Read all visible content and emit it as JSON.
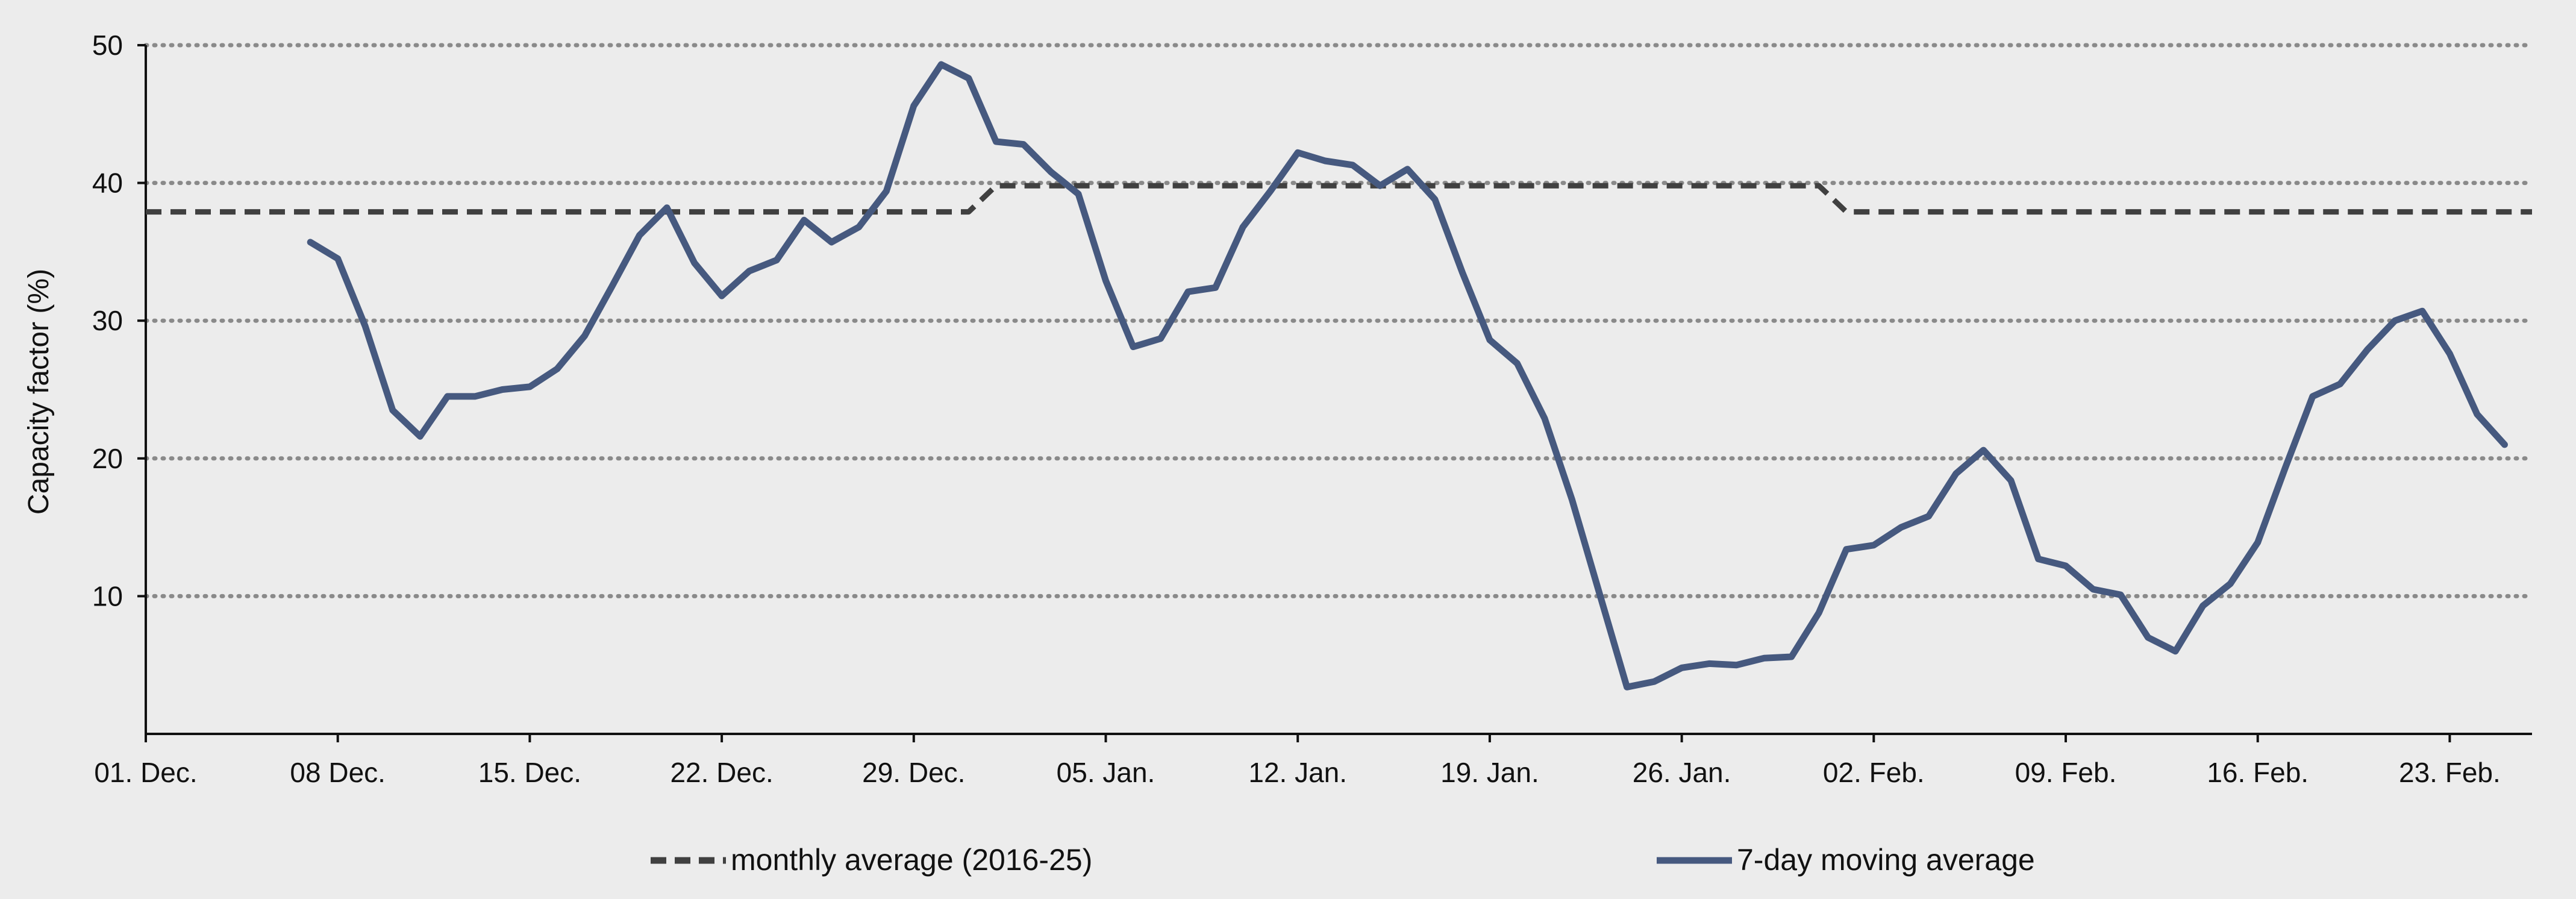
{
  "chart_data": {
    "type": "line",
    "title": "",
    "xlabel": "",
    "ylabel": "Capacity factor (%)",
    "ylim": [
      0,
      50
    ],
    "yticks": [
      10,
      20,
      30,
      40,
      50
    ],
    "grid": "horizontal dotted",
    "legend_position": "bottom",
    "x_start_date": "01. Dec.",
    "xlim_days": [
      0,
      87
    ],
    "xticks": [
      {
        "day": 0,
        "label": "01. Dec."
      },
      {
        "day": 7,
        "label": "08 Dec."
      },
      {
        "day": 14,
        "label": "15. Dec."
      },
      {
        "day": 21,
        "label": "22. Dec."
      },
      {
        "day": 28,
        "label": "29. Dec."
      },
      {
        "day": 35,
        "label": "05. Jan."
      },
      {
        "day": 42,
        "label": "12. Jan."
      },
      {
        "day": 49,
        "label": "19. Jan."
      },
      {
        "day": 56,
        "label": "26. Jan."
      },
      {
        "day": 63,
        "label": "02. Feb."
      },
      {
        "day": 70,
        "label": "09. Feb."
      },
      {
        "day": 77,
        "label": "16. Feb."
      },
      {
        "day": 84,
        "label": "23. Feb."
      }
    ],
    "series": [
      {
        "name": "monthly average (2016-25)",
        "style": "dashed",
        "color": "#404040",
        "points": [
          [
            0,
            37.9
          ],
          [
            30,
            37.9
          ],
          [
            31,
            39.8
          ],
          [
            61,
            39.8
          ],
          [
            62,
            37.9
          ],
          [
            87,
            37.9
          ]
        ]
      },
      {
        "name": "7-day moving average",
        "style": "solid",
        "color": "#46597f",
        "start_day": 6,
        "values": [
          35.7,
          34.5,
          29.6,
          23.5,
          21.6,
          24.5,
          24.5,
          25.0,
          25.2,
          26.5,
          28.9,
          32.5,
          36.2,
          38.2,
          34.2,
          31.8,
          33.6,
          34.4,
          37.3,
          35.7,
          36.8,
          39.4,
          45.6,
          48.6,
          47.6,
          43.0,
          42.8,
          40.8,
          39.2,
          32.9,
          28.1,
          28.7,
          32.1,
          32.4,
          36.8,
          39.4,
          42.2,
          41.6,
          41.3,
          39.8,
          41.0,
          38.8,
          33.5,
          28.6,
          26.9,
          22.9,
          17.0,
          10.2,
          3.4,
          3.8,
          4.8,
          5.1,
          5.0,
          5.5,
          5.6,
          8.8,
          13.4,
          13.7,
          15.0,
          15.8,
          18.9,
          20.6,
          18.4,
          12.7,
          12.2,
          10.5,
          10.1,
          7.0,
          6.0,
          9.3,
          10.9,
          13.9,
          19.3,
          24.5,
          25.4,
          27.9,
          30.0,
          30.7,
          27.6,
          23.2,
          21.0
        ]
      }
    ]
  }
}
